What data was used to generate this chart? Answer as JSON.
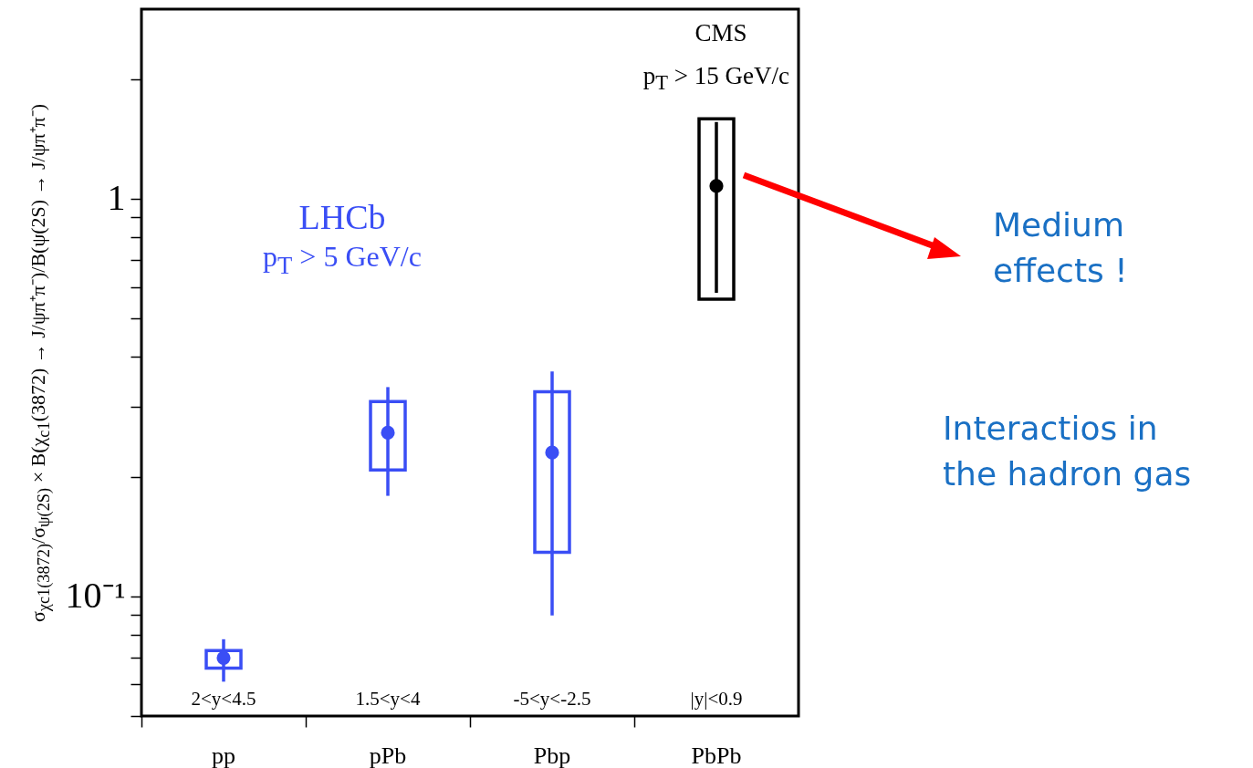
{
  "chart_data": {
    "type": "scatter",
    "ylabel": "σ$_{χc1(3872)}$/σ$_{ψ(2S)}$ × B(χ$_{c1}$(3872) → J/ψπ⁺π⁻)/B(ψ(2S) → J/ψπ⁺π⁻)",
    "categories": [
      "pp",
      "pPb",
      "Pbp",
      "PbPb"
    ],
    "ylim": [
      0.05,
      3
    ],
    "yticks": [
      {
        "value": 0.05,
        "label": null
      },
      {
        "value": 0.06,
        "label": null
      },
      {
        "value": 0.07,
        "label": null
      },
      {
        "value": 0.08,
        "label": null
      },
      {
        "value": 0.09,
        "label": null
      },
      {
        "value": 0.1,
        "label": "10⁻¹"
      },
      {
        "value": 0.2,
        "label": null
      },
      {
        "value": 0.3,
        "label": null
      },
      {
        "value": 0.4,
        "label": null
      },
      {
        "value": 0.5,
        "label": null
      },
      {
        "value": 0.6,
        "label": null
      },
      {
        "value": 0.7,
        "label": null
      },
      {
        "value": 0.8,
        "label": null
      },
      {
        "value": 0.9,
        "label": null
      },
      1,
      {
        "value": 2,
        "label": null
      }
    ],
    "log": true,
    "annotations": [
      "2<y<4.5",
      "1.5<y<4",
      "-5<y<-2.5",
      "|y|<0.9",
      "LHCb",
      "p$_{T}$ > 5 GeV/c",
      "CMS",
      "p$_{T}$ > 15 GeV/c",
      "Medium effects !",
      "Interactios in the hadron gas"
    ],
    "series": [
      {
        "type": "bar",
        "base": [
          0.066,
          0.208,
          0.129,
          0.559
        ],
        "values": [
          0.007,
          0.101,
          0.198,
          1.031
        ],
        "colors": [
          "#3a4ef5",
          "#3a4ef5",
          "#3a4ef5",
          "#000000"
        ]
      },
      {
        "marker": "circle",
        "values": [
          0.07,
          0.258,
          0.23,
          1.077
        ],
        "errors": [
          [
            0.061,
            0.078
          ],
          [
            0.179,
            0.336
          ],
          [
            0.0895,
            0.368
          ],
          [
            0.58,
            1.56
          ]
        ],
        "colors": [
          "#3a4ef5",
          "#3a4ef5",
          "#3a4ef5",
          "#000000"
        ]
      }
    ]
  }
}
